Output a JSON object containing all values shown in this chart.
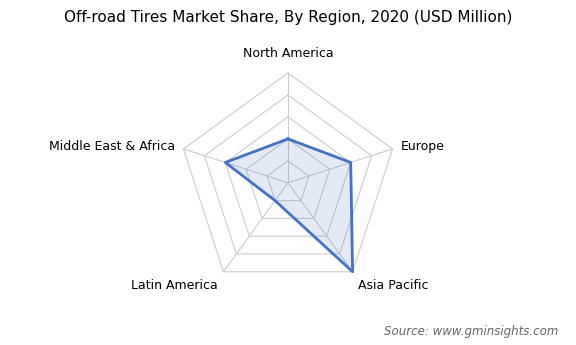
{
  "title": "Off-road Tires Market Share, By Region, 2020 (USD Million)",
  "categories": [
    "North America",
    "Europe",
    "Asia Pacific",
    "Latin America",
    "Middle East & Africa"
  ],
  "values": [
    2,
    3,
    5,
    1,
    3
  ],
  "max_value": 5,
  "num_rings": 5,
  "line_color": "#4472C4",
  "line_width": 2.0,
  "grid_color": "#cccccc",
  "bg_color": "#ffffff",
  "fill_color": "#4472C4",
  "fill_alpha": 0.15,
  "source_text": "Source: www.gminsights.com",
  "title_fontsize": 11,
  "label_fontsize": 9,
  "source_fontsize": 8.5,
  "label_offsets": [
    0.12,
    0.08,
    0.08,
    0.08,
    0.08
  ]
}
